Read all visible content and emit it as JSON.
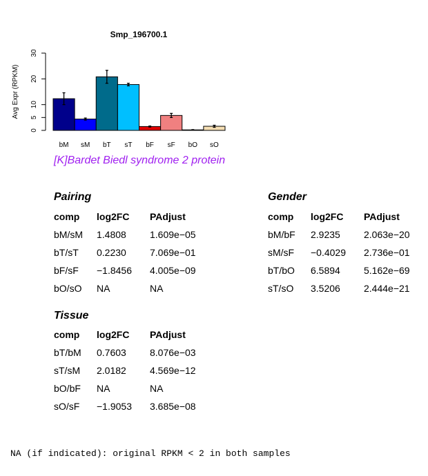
{
  "chart_data": {
    "type": "bar",
    "title": "Smp_196700.1",
    "ylabel": "Avg Expr (RPKM)",
    "xlabel": "",
    "ylim": [
      0,
      30
    ],
    "yticks": [
      0,
      5,
      10,
      20,
      30
    ],
    "categories": [
      "bM",
      "sM",
      "bT",
      "sT",
      "bF",
      "sF",
      "bO",
      "sO"
    ],
    "values": [
      12.3,
      4.4,
      20.8,
      17.8,
      1.5,
      5.8,
      0.2,
      1.6
    ],
    "errors": [
      2.3,
      0.4,
      2.5,
      0.5,
      0.2,
      0.8,
      0.1,
      0.4
    ],
    "colors": [
      "#00008b",
      "#0000ff",
      "#006b8b",
      "#00bfff",
      "#e00000",
      "#f08080",
      "#ffffff",
      "#f5deb3"
    ],
    "legend": "none",
    "grid": false
  },
  "subtitle": {
    "text": "[K]Bardet Biedl syndrome 2 protein",
    "color": "#a020f0"
  },
  "columns": [
    "comp",
    "log2FC",
    "PAdjust"
  ],
  "sections": {
    "pairing": {
      "heading": "Pairing",
      "rows": [
        [
          "bM/sM",
          "1.4808",
          "1.609e−05"
        ],
        [
          "bT/sT",
          "0.2230",
          "7.069e−01"
        ],
        [
          "bF/sF",
          "−1.8456",
          "4.005e−09"
        ],
        [
          "bO/sO",
          "NA",
          "NA"
        ]
      ]
    },
    "gender": {
      "heading": "Gender",
      "rows": [
        [
          "bM/bF",
          "2.9235",
          "2.063e−20"
        ],
        [
          "sM/sF",
          "−0.4029",
          "2.736e−01"
        ],
        [
          "bT/bO",
          "6.5894",
          "5.162e−69"
        ],
        [
          "sT/sO",
          "3.5206",
          "2.444e−21"
        ]
      ]
    },
    "tissue": {
      "heading": "Tissue",
      "rows": [
        [
          "bT/bM",
          "0.7603",
          "8.076e−03"
        ],
        [
          "sT/sM",
          "2.0182",
          "4.569e−12"
        ],
        [
          "bO/bF",
          "NA",
          "NA"
        ],
        [
          "sO/sF",
          "−1.9053",
          "3.685e−08"
        ]
      ]
    }
  },
  "footnote": "NA (if indicated): original RPKM < 2 in both samples"
}
